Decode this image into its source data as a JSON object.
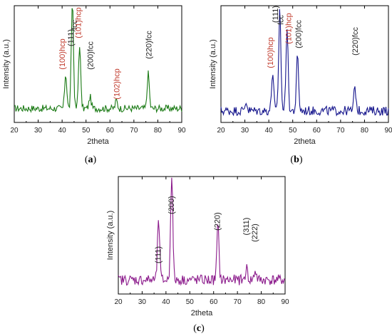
{
  "chart_data": [
    {
      "id": "a",
      "type": "line",
      "caption": "a",
      "xlabel": "2theta",
      "ylabel": "Intensity (a.u.)",
      "xlim": [
        20,
        90
      ],
      "xticks": [
        20,
        30,
        40,
        50,
        60,
        70,
        80,
        90
      ],
      "y_ticks_shown": false,
      "grid": false,
      "series": [
        {
          "color": "#1a7a14",
          "baseline": 0.12,
          "noise": 0.03,
          "peaks": [
            [
              41.5,
              0.3
            ],
            [
              44.3,
              0.92
            ],
            [
              47.3,
              0.55
            ],
            [
              51.7,
              0.1
            ],
            [
              62.7,
              0.07
            ],
            [
              76.0,
              0.3
            ]
          ],
          "x_step": 0.35
        }
      ],
      "annotations": [
        {
          "text": "(111)",
          "x": 43.8,
          "color": "#222222"
        },
        {
          "text": "fcc",
          "x": 45.3,
          "color": "#222222"
        },
        {
          "text": "(100)hcp",
          "x": 40.2,
          "color": "#c0392b"
        },
        {
          "text": "(101)hcp",
          "x": 47.0,
          "color": "#c0392b"
        },
        {
          "text": "(200)fcc",
          "x": 52.0,
          "color": "#222222"
        },
        {
          "text": "(102)hcp",
          "x": 63.0,
          "color": "#c0392b"
        },
        {
          "text": "(220)fcc",
          "x": 76.5,
          "color": "#222222"
        }
      ]
    },
    {
      "id": "b",
      "type": "line",
      "caption": "b",
      "xlabel": "2theta",
      "ylabel": "Intensity (a.u.)",
      "xlim": [
        20,
        90
      ],
      "xticks": [
        20,
        30,
        40,
        50,
        60,
        70,
        80,
        90
      ],
      "y_ticks_shown": false,
      "grid": false,
      "series": [
        {
          "color": "#14148c",
          "baseline": 0.1,
          "noise": 0.04,
          "peaks": [
            [
              41.6,
              0.33
            ],
            [
              44.6,
              0.88
            ],
            [
              47.6,
              0.72
            ],
            [
              52.0,
              0.47
            ],
            [
              76.0,
              0.2
            ],
            [
              30.5,
              0.08
            ]
          ],
          "x_step": 0.35
        }
      ],
      "annotations": [
        {
          "text": "(111)",
          "x": 43.0,
          "color": "#222222"
        },
        {
          "text": "fcc",
          "x": 45.2,
          "color": "#222222"
        },
        {
          "text": "(101)hcp",
          "x": 48.5,
          "color": "#c0392b"
        },
        {
          "text": "(100)hcp",
          "x": 40.8,
          "color": "#c0392b"
        },
        {
          "text": "(200)fcc",
          "x": 52.6,
          "color": "#222222"
        },
        {
          "text": "(220)fcc",
          "x": 76.3,
          "color": "#222222"
        }
      ]
    },
    {
      "id": "c",
      "type": "line",
      "caption": "c",
      "xlabel": "2theta",
      "ylabel": "Intensity (a.u.)",
      "xlim": [
        20,
        90
      ],
      "xticks": [
        20,
        30,
        40,
        50,
        60,
        70,
        80,
        90
      ],
      "y_ticks_shown": false,
      "grid": false,
      "series": [
        {
          "color": "#8b1a8b",
          "baseline": 0.12,
          "noise": 0.045,
          "peaks": [
            [
              36.9,
              0.52
            ],
            [
              42.4,
              0.92
            ],
            [
              61.8,
              0.46
            ],
            [
              73.8,
              0.1
            ],
            [
              77.5,
              0.08
            ]
          ],
          "x_step": 0.35
        }
      ],
      "annotations": [
        {
          "text": "(111)",
          "x": 36.9,
          "color": "#222222"
        },
        {
          "text": "(200)",
          "x": 42.4,
          "color": "#222222"
        },
        {
          "text": "(220)",
          "x": 61.8,
          "color": "#222222"
        },
        {
          "text": "(311)",
          "x": 73.8,
          "color": "#222222"
        },
        {
          "text": "(222)",
          "x": 77.5,
          "color": "#222222"
        }
      ]
    }
  ]
}
